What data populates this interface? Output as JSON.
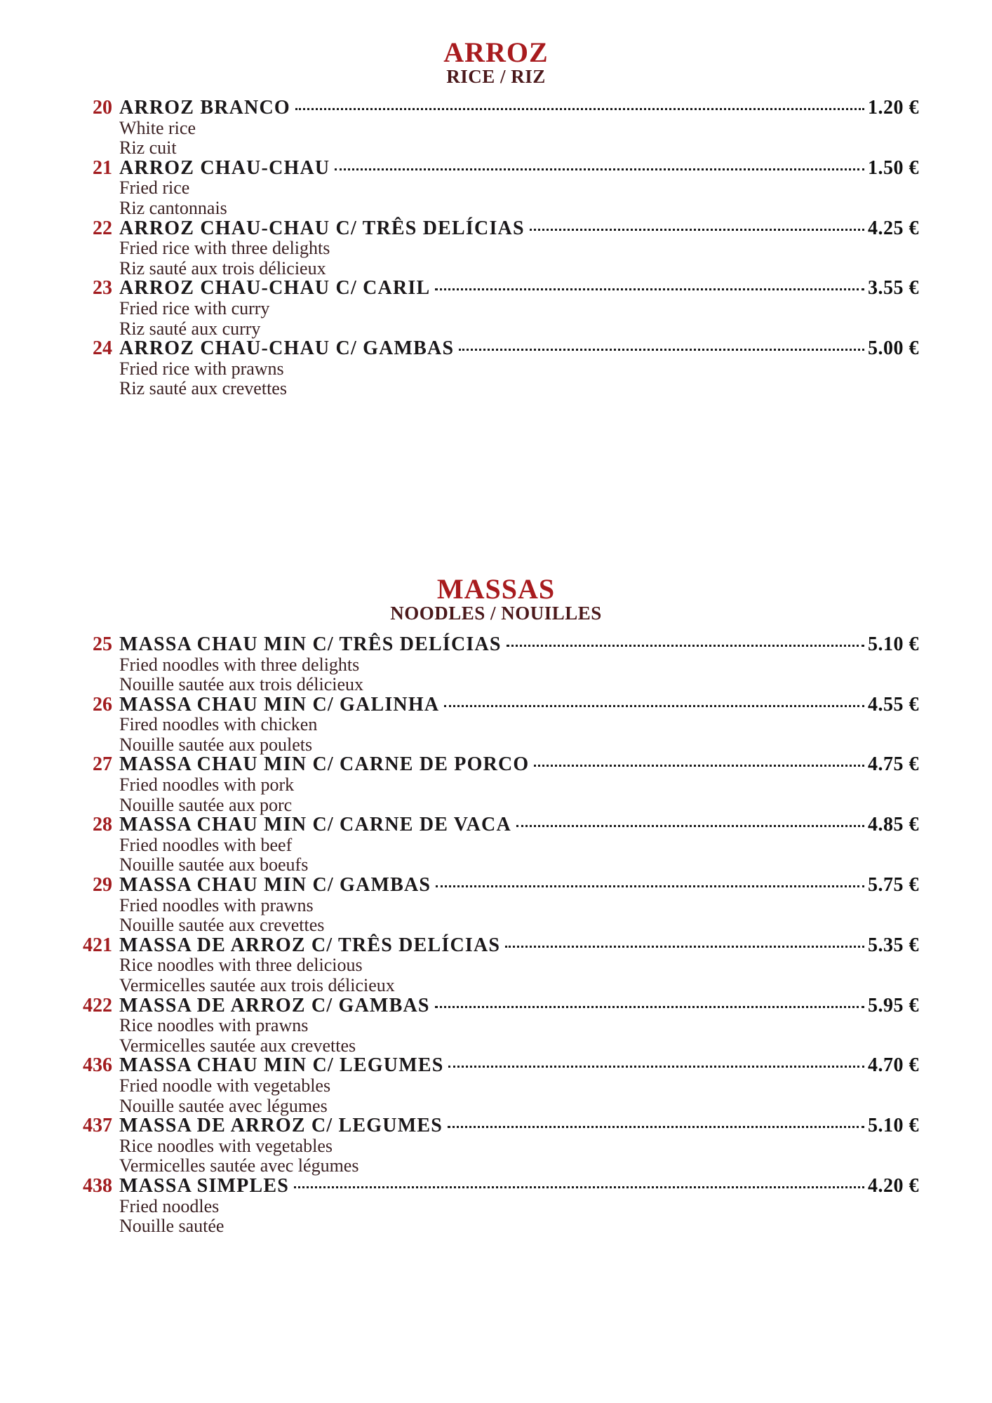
{
  "page": {
    "background": "#ffffff",
    "accent_red": "#a81b1e",
    "subtitle_maroon": "#4b191b",
    "item_name_color": "#1b181a",
    "description_color": "#3b2123",
    "price_color": "#101010"
  },
  "sections": [
    {
      "title": "ARROZ",
      "subtitle": "RICE / RIZ",
      "items": [
        {
          "num": "20",
          "name": "ARROZ BRANCO",
          "price": "1.20 €",
          "desc_en": "White rice",
          "desc_fr": "Riz cuit"
        },
        {
          "num": "21",
          "name": "ARROZ CHAU-CHAU",
          "price": "1.50 €",
          "desc_en": "Fried rice",
          "desc_fr": "Riz cantonnais"
        },
        {
          "num": "22",
          "name": "ARROZ CHAU-CHAU C/ TRÊS DELÍCIAS",
          "price": "4.25 €",
          "desc_en": "Fried rice with three delights",
          "desc_fr": "Riz sauté aux trois délicieux"
        },
        {
          "num": "23",
          "name": "ARROZ CHAU-CHAU C/ CARIL",
          "price": "3.55 €",
          "desc_en": "Fried rice with curry",
          "desc_fr": "Riz sauté aux curry"
        },
        {
          "num": "24",
          "name": "ARROZ CHAU-CHAU C/ GAMBAS",
          "price": "5.00 €",
          "desc_en": "Fried rice with prawns",
          "desc_fr": "Riz sauté aux crevettes"
        }
      ]
    },
    {
      "title": "MASSAS",
      "subtitle": "NOODLES / NOUILLES",
      "items": [
        {
          "num": "25",
          "name": "MASSA CHAU MIN C/ TRÊS DELÍCIAS",
          "price": "5.10 €",
          "desc_en": "Fried noodles with three delights",
          "desc_fr": "Nouille sautée aux trois délicieux"
        },
        {
          "num": "26",
          "name": "MASSA CHAU MIN C/ GALINHA",
          "price": "4.55 €",
          "desc_en": "Fired noodles with chicken",
          "desc_fr": "Nouille sautée aux poulets"
        },
        {
          "num": "27",
          "name": "MASSA CHAU MIN C/ CARNE DE PORCO",
          "price": "4.75 €",
          "desc_en": "Fried noodles with pork",
          "desc_fr": "Nouille sautée aux porc"
        },
        {
          "num": "28",
          "name": "MASSA CHAU MIN C/ CARNE DE VACA",
          "price": "4.85 €",
          "desc_en": "Fried noodles with beef",
          "desc_fr": "Nouille sautée aux boeufs"
        },
        {
          "num": "29",
          "name": "MASSA CHAU MIN C/ GAMBAS",
          "price": "5.75 €",
          "desc_en": "Fried noodles with prawns",
          "desc_fr": "Nouille sautée aux crevettes"
        },
        {
          "num": "421",
          "name": "MASSA DE ARROZ C/ TRÊS DELÍCIAS",
          "price": "5.35 €",
          "desc_en": "Rice noodles with three delicious",
          "desc_fr": "Vermicelles sautée aux trois délicieux"
        },
        {
          "num": "422",
          "name": "MASSA DE ARROZ C/ GAMBAS",
          "price": "5.95 €",
          "desc_en": "Rice noodles with prawns",
          "desc_fr": "Vermicelles sautée aux crevettes"
        },
        {
          "num": "436",
          "name": "MASSA CHAU MIN C/ LEGUMES",
          "price": "4.70 €",
          "desc_en": "Fried noodle with vegetables",
          "desc_fr": "Nouille sautée avec légumes"
        },
        {
          "num": "437",
          "name": "MASSA DE ARROZ C/ LEGUMES",
          "price": "5.10 €",
          "desc_en": "Rice noodles with vegetables",
          "desc_fr": "Vermicelles sautée avec légumes"
        },
        {
          "num": "438",
          "name": "MASSA SIMPLES",
          "price": "4.20 €",
          "desc_en": "Fried noodles",
          "desc_fr": "Nouille sautée"
        }
      ]
    }
  ]
}
